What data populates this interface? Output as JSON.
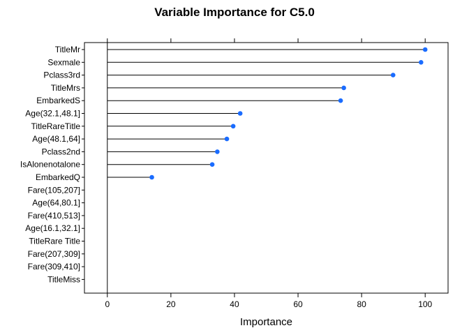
{
  "chart_data": {
    "type": "dotplot",
    "title": "Variable Importance for C5.0",
    "xlabel": "Importance",
    "ylabel": "",
    "xlim": [
      -7.2,
      107.2
    ],
    "xticks": [
      0,
      20,
      40,
      60,
      80,
      100
    ],
    "grid": false,
    "legend": "none",
    "point_color": "#1a6cff",
    "categories": [
      "TitleMr",
      "Sexmale",
      "Pclass3rd",
      "TitleMrs",
      "EmbarkedS",
      "Age(32.1,48.1]",
      "TitleRareTitle",
      "Age(48.1,64]",
      "Pclass2nd",
      "IsAlonenotalone",
      "EmbarkedQ",
      "Fare(105,207]",
      "Age(64,80.1]",
      "Fare(410,513]",
      "Age(16.1,32.1]",
      "TitleRare Title",
      "Fare(207,309]",
      "Fare(309,410]",
      "TitleMiss"
    ],
    "values": [
      100,
      98.7,
      89.9,
      74.4,
      73.4,
      41.8,
      39.6,
      37.6,
      34.6,
      33.0,
      14.0,
      0,
      0,
      0,
      0,
      0,
      0,
      0,
      0
    ]
  }
}
